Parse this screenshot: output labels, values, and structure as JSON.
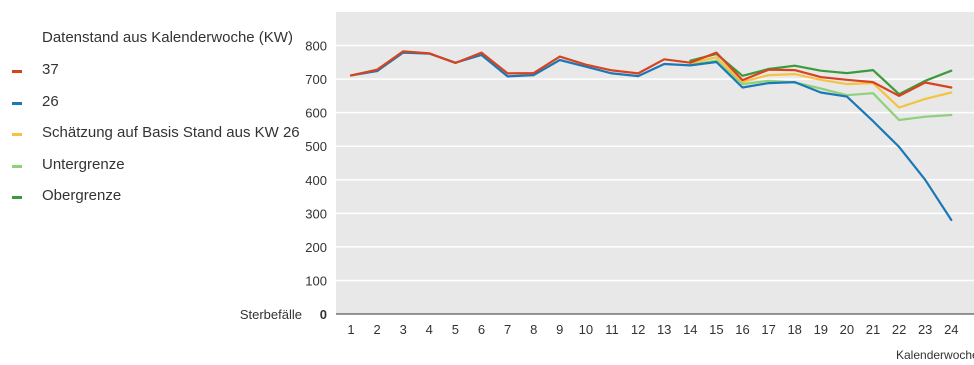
{
  "chart_data": {
    "type": "line",
    "xlabel": "Kalenderwoche",
    "ylabel": "Sterbefälle",
    "legend_title": "Datenstand aus Kalenderwoche (KW)",
    "legend_position": "left",
    "ylim": [
      0,
      900
    ],
    "yticks": [
      0,
      100,
      200,
      300,
      400,
      500,
      600,
      700,
      800
    ],
    "x": [
      1,
      2,
      3,
      4,
      5,
      6,
      7,
      8,
      9,
      10,
      11,
      12,
      13,
      14,
      15,
      16,
      17,
      18,
      19,
      20,
      21,
      22,
      23,
      24
    ],
    "grid": true,
    "series": [
      {
        "name": "Obergrenze",
        "color": "#3b9a3b",
        "values": [
          null,
          null,
          null,
          null,
          null,
          null,
          null,
          null,
          null,
          null,
          null,
          null,
          null,
          755,
          775,
          710,
          730,
          740,
          725,
          718,
          727,
          655,
          695,
          725
        ]
      },
      {
        "name": "Untergrenze",
        "color": "#8fd07a",
        "values": [
          null,
          null,
          null,
          null,
          null,
          null,
          null,
          null,
          null,
          null,
          null,
          null,
          null,
          743,
          755,
          685,
          695,
          690,
          672,
          652,
          658,
          578,
          588,
          593
        ]
      },
      {
        "name": "Schätzung auf Basis Stand aus KW 26",
        "color": "#f5c242",
        "values": [
          null,
          null,
          null,
          null,
          null,
          null,
          null,
          null,
          null,
          null,
          null,
          null,
          null,
          748,
          765,
          692,
          712,
          715,
          698,
          685,
          688,
          615,
          641,
          660
        ]
      },
      {
        "name": "26",
        "color": "#1a78b5",
        "values": [
          711,
          724,
          779,
          776,
          749,
          772,
          708,
          712,
          757,
          737,
          717,
          709,
          745,
          741,
          751,
          675,
          688,
          691,
          660,
          648,
          575,
          498,
          400,
          280
        ]
      },
      {
        "name": "37",
        "color": "#d9421f",
        "values": [
          711,
          728,
          783,
          777,
          748,
          779,
          717,
          718,
          767,
          743,
          726,
          717,
          759,
          749,
          779,
          697,
          728,
          727,
          706,
          698,
          691,
          650,
          690,
          675
        ]
      }
    ],
    "legend_order": [
      "37",
      "26",
      "Schätzung auf Basis Stand aus KW 26",
      "Untergrenze",
      "Obergrenze"
    ]
  }
}
